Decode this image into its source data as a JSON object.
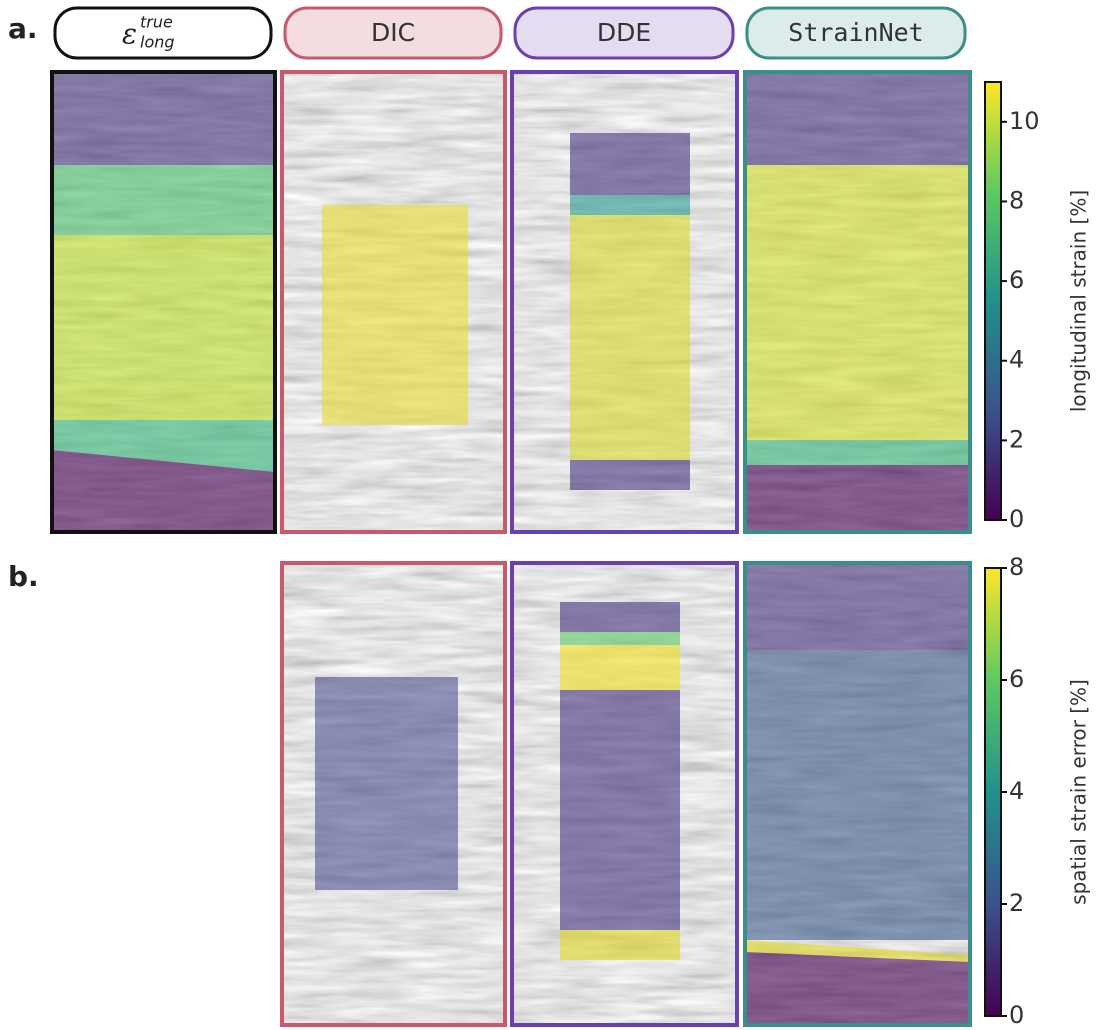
{
  "panel_labels": [
    "a.",
    "b."
  ],
  "headers": {
    "truth": {
      "symbol": "ε",
      "sup": "true",
      "sub": "long"
    },
    "methods": [
      "DIC",
      "DDE",
      "StrainNet"
    ]
  },
  "colorbar_a": {
    "label": "longitudinal strain [%]",
    "lim": [
      0,
      11
    ],
    "ticks": [
      0,
      2,
      4,
      6,
      8,
      10
    ]
  },
  "colorbar_b": {
    "label": "spatial strain error [%]",
    "lim": [
      0,
      8
    ],
    "ticks": [
      0,
      2,
      4,
      6,
      8
    ]
  }
}
